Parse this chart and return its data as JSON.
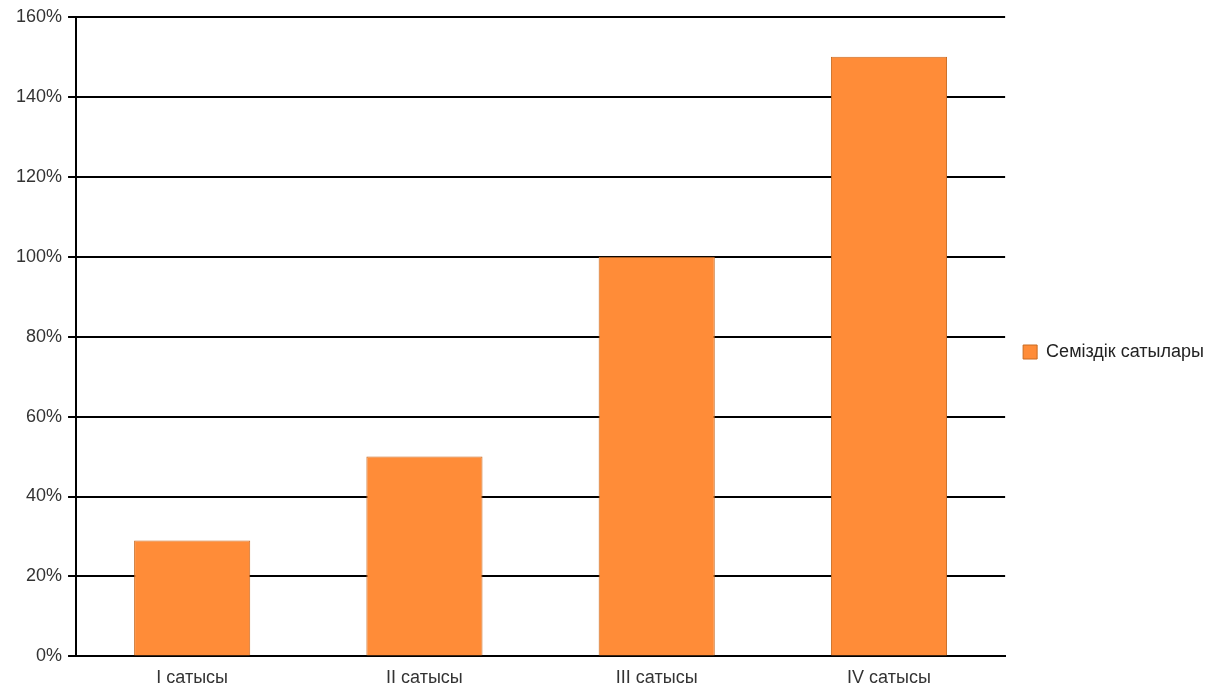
{
  "chart_data": {
    "type": "bar",
    "categories": [
      "I сатысы",
      "II сатысы",
      "III сатысы",
      "IV сатысы"
    ],
    "series": [
      {
        "name": "Семіздік сатылары",
        "color": "#ff8c38",
        "values": [
          29,
          50,
          100,
          150
        ]
      }
    ],
    "ylim": [
      0,
      160
    ],
    "yticks": [
      {
        "value": 0,
        "label": "0%"
      },
      {
        "value": 20,
        "label": "20%"
      },
      {
        "value": 40,
        "label": "40%"
      },
      {
        "value": 60,
        "label": "60%"
      },
      {
        "value": 80,
        "label": "80%"
      },
      {
        "value": 100,
        "label": "100%"
      },
      {
        "value": 120,
        "label": "120%"
      },
      {
        "value": 140,
        "label": "140%"
      },
      {
        "value": 160,
        "label": "160%"
      }
    ],
    "grid": "y",
    "legend": "right"
  }
}
